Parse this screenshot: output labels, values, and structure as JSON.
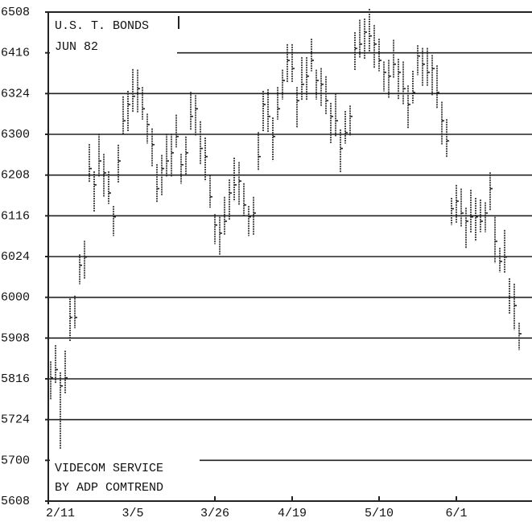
{
  "chart_data": {
    "type": "hlc",
    "title": "U.S. T. BONDS",
    "subtitle": "JUN 82",
    "annotations": [
      "VIDECOM SERVICE",
      "BY ADP COMTREND"
    ],
    "color": "#222222",
    "grid": true,
    "ylim": [
      56.25,
      65.25
    ],
    "yticks": [
      {
        "value": 65.25,
        "label": "6508"
      },
      {
        "value": 64.5,
        "label": "6416"
      },
      {
        "value": 63.75,
        "label": "6324"
      },
      {
        "value": 63,
        "label": "6300"
      },
      {
        "value": 62.25,
        "label": "6208"
      },
      {
        "value": 61.5,
        "label": "6116"
      },
      {
        "value": 60.75,
        "label": "6024"
      },
      {
        "value": 60,
        "label": "6000"
      },
      {
        "value": 59.25,
        "label": "5908"
      },
      {
        "value": 58.5,
        "label": "5816"
      },
      {
        "value": 57.75,
        "label": "5724"
      },
      {
        "value": 57,
        "label": "5700"
      },
      {
        "value": 56.25,
        "label": "5608"
      }
    ],
    "categories": [
      null,
      null,
      "2/11",
      null,
      null,
      null,
      null,
      null,
      null,
      null,
      null,
      null,
      null,
      null,
      null,
      null,
      null,
      "3/5",
      null,
      null,
      null,
      null,
      null,
      null,
      null,
      null,
      null,
      null,
      null,
      null,
      null,
      null,
      null,
      null,
      "3/26",
      null,
      null,
      null,
      null,
      null,
      null,
      null,
      null,
      null,
      null,
      null,
      null,
      null,
      null,
      null,
      "4/19",
      null,
      null,
      null,
      null,
      null,
      null,
      null,
      null,
      null,
      null,
      null,
      null,
      null,
      null,
      null,
      null,
      null,
      "5/10",
      null,
      null,
      null,
      null,
      null,
      null,
      null,
      null,
      null,
      null,
      null,
      null,
      null,
      null,
      null,
      "6/1",
      null,
      null,
      null,
      null,
      null,
      null,
      null,
      null,
      null,
      null,
      null,
      null,
      null
    ],
    "high": [
      58.82,
      59.12,
      58.62,
      59.02,
      59.98,
      60.03,
      60.79,
      61.04,
      62.82,
      62.32,
      63.01,
      62.64,
      62.32,
      61.68,
      62.81,
      63.7,
      63.8,
      64.2,
      64.19,
      63.87,
      63.38,
      63.11,
      62.45,
      62.62,
      63.01,
      63.01,
      63.36,
      62.64,
      62.96,
      63.78,
      63.72,
      63.24,
      62.94,
      62.25,
      61.53,
      61.48,
      61.85,
      62.17,
      62.57,
      62.49,
      62.1,
      61.68,
      61.85,
      63.04,
      63.8,
      63.83,
      63.31,
      63.87,
      64.19,
      64.66,
      64.66,
      63.87,
      64.42,
      64.42,
      64.76,
      64.19,
      64.22,
      64.07,
      63.58,
      63.75,
      63.09,
      63.43,
      63.53,
      64.88,
      65.11,
      65.13,
      65.31,
      65.01,
      64.76,
      64.34,
      64.37,
      64.74,
      64.39,
      64.34,
      63.9,
      64.17,
      64.64,
      64.59,
      64.59,
      64.46,
      64.27,
      63.6,
      63.28,
      61.83,
      62.07,
      62.0,
      61.65,
      61.98,
      61.83,
      61.8,
      61.75,
      62.3,
      61.48,
      60.91,
      61.24,
      60.35,
      60.25,
      59.53
    ],
    "low": [
      58.12,
      58.42,
      57.2,
      58.22,
      59.18,
      59.43,
      60.24,
      60.34,
      62.12,
      61.57,
      62.21,
      61.84,
      61.72,
      61.13,
      62.11,
      63.0,
      63.05,
      63.4,
      63.39,
      63.27,
      62.83,
      62.41,
      61.75,
      61.87,
      62.21,
      62.21,
      62.76,
      62.09,
      62.26,
      63.08,
      62.97,
      62.44,
      62.14,
      61.65,
      60.98,
      60.78,
      61.15,
      61.42,
      61.77,
      61.69,
      61.5,
      61.13,
      61.15,
      62.34,
      63.05,
      63.03,
      62.51,
      63.27,
      63.64,
      63.96,
      63.96,
      63.12,
      63.62,
      63.62,
      64.16,
      63.64,
      63.52,
      63.37,
      62.83,
      62.95,
      62.29,
      62.83,
      62.98,
      64.18,
      64.41,
      64.38,
      64.51,
      64.21,
      64.16,
      63.79,
      63.67,
      64.04,
      63.64,
      63.54,
      63.1,
      63.57,
      64.09,
      63.89,
      63.89,
      63.71,
      63.47,
      62.8,
      62.58,
      61.33,
      61.37,
      61.3,
      60.9,
      61.18,
      61.03,
      61.2,
      61.2,
      61.6,
      60.63,
      60.46,
      60.44,
      59.7,
      59.4,
      59.03
    ],
    "close": [
      58.52,
      58.67,
      58.37,
      58.52,
      59.63,
      59.63,
      60.59,
      60.74,
      62.37,
      62.07,
      62.51,
      62.29,
      61.92,
      61.48,
      62.51,
      63.25,
      63.55,
      63.7,
      63.84,
      63.47,
      63.18,
      62.81,
      62.0,
      62.37,
      62.51,
      62.66,
      62.96,
      62.44,
      62.66,
      63.33,
      63.47,
      62.74,
      62.59,
      61.85,
      61.33,
      61.18,
      61.4,
      61.92,
      62.07,
      62.14,
      61.7,
      61.48,
      61.55,
      62.59,
      63.55,
      63.33,
      62.96,
      63.47,
      63.99,
      64.36,
      64.21,
      63.62,
      63.92,
      64.07,
      64.36,
      63.99,
      63.92,
      63.62,
      63.33,
      63.25,
      62.74,
      63.03,
      63.33,
      64.58,
      64.66,
      64.88,
      64.81,
      64.66,
      64.36,
      64.14,
      64.07,
      64.29,
      64.14,
      63.84,
      63.55,
      63.77,
      64.44,
      64.29,
      64.14,
      64.21,
      63.77,
      63.25,
      62.88,
      61.63,
      61.77,
      61.55,
      61.4,
      61.48,
      61.48,
      61.4,
      61.55,
      62.0,
      61.03,
      60.66,
      60.74,
      60.0,
      59.85,
      59.33
    ]
  }
}
